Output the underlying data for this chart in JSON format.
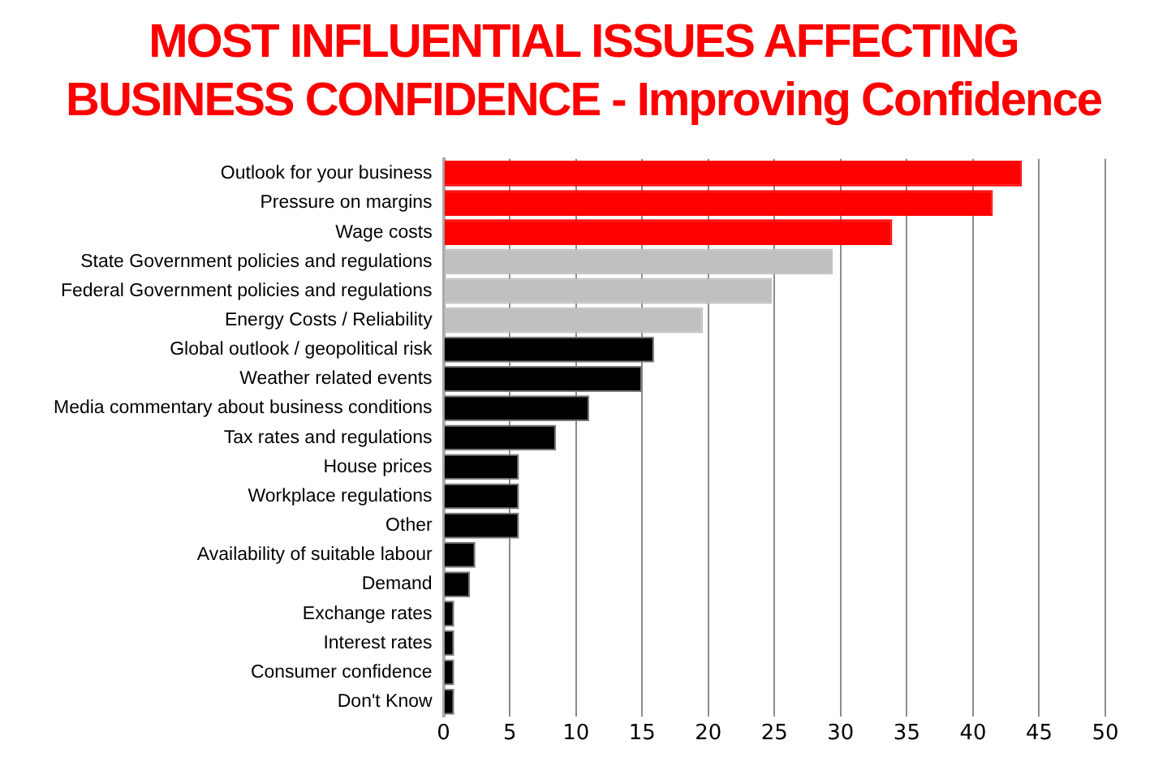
{
  "chart_data": {
    "type": "bar",
    "orientation": "horizontal",
    "title": "MOST INFLUENTIAL ISSUES AFFECTING BUSINESS CONFIDENCE - Improving Confidence",
    "categories": [
      "Outlook for your business",
      "Pressure on margins",
      "Wage costs",
      "State Government policies and regulations",
      "Federal Government policies and regulations",
      "Energy Costs / Reliability",
      "Global outlook / geopolitical risk",
      "Weather related events",
      "Media commentary about business conditions",
      "Tax rates and regulations",
      "House prices",
      "Workplace regulations",
      "Other",
      "Availability of suitable labour",
      "Demand",
      "Exchange rates",
      "Interest rates",
      "Consumer confidence",
      "Don't Know"
    ],
    "values": [
      43.7,
      41.5,
      33.9,
      29.4,
      24.8,
      19.6,
      15.9,
      15.0,
      11.0,
      8.5,
      5.7,
      5.7,
      5.7,
      2.4,
      2.0,
      0.8,
      0.8,
      0.8,
      0.8
    ],
    "colors": [
      "#ff0000",
      "#ff0000",
      "#ff0000",
      "#c0c0c0",
      "#c0c0c0",
      "#c0c0c0",
      "#000000",
      "#000000",
      "#000000",
      "#000000",
      "#000000",
      "#000000",
      "#000000",
      "#000000",
      "#000000",
      "#000000",
      "#000000",
      "#000000",
      "#000000"
    ],
    "xlim": [
      0,
      50
    ],
    "xticks": [
      0,
      5,
      10,
      15,
      20,
      25,
      30,
      35,
      40,
      45,
      50
    ],
    "grid": "x",
    "legend": false
  }
}
